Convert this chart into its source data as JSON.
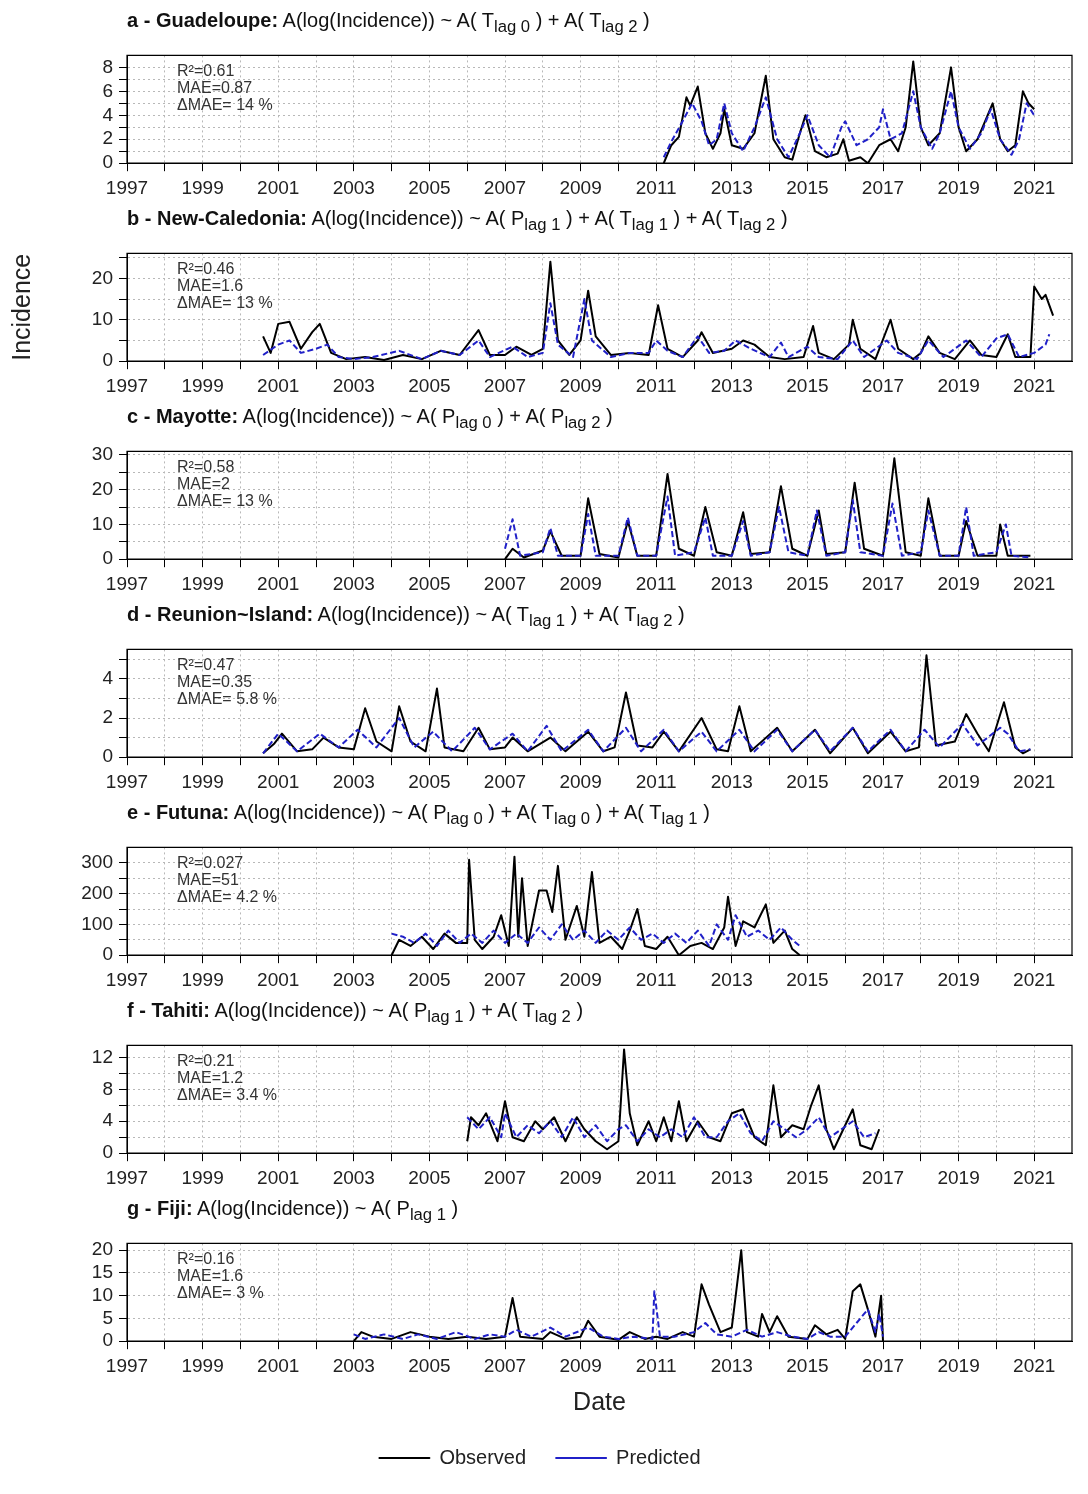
{
  "chart_data": [
    {
      "type": "line",
      "title": "a - Guadeloupe: A(log(Incidence)) ~ A( T$_{lag 0}$ ) + A( T$_{lag 2}$ )",
      "annotations": [
        "R²=0.61",
        "MAE=0.87",
        "ΔMAE= 14 %"
      ],
      "xlim": [
        1997,
        2022
      ],
      "xticks": [
        1997,
        {
          "value": 1998,
          "label": null
        },
        1999,
        {
          "value": 2000,
          "label": null
        },
        2001,
        {
          "value": 2002,
          "label": null
        },
        2003,
        {
          "value": 2004,
          "label": null
        },
        2005,
        {
          "value": 2006,
          "label": null
        },
        2007,
        {
          "value": 2008,
          "label": null
        },
        2009,
        {
          "value": 2010,
          "label": null
        },
        2011,
        {
          "value": 2012,
          "label": null
        },
        2013,
        {
          "value": 2014,
          "label": null
        },
        2015,
        {
          "value": 2016,
          "label": null
        },
        2017,
        {
          "value": 2018,
          "label": null
        },
        2019,
        {
          "value": 2020,
          "label": null
        },
        2021
      ],
      "ylim": [
        0,
        9
      ],
      "yticks": [
        0,
        {
          "value": 1,
          "label": null
        },
        2,
        {
          "value": 3,
          "label": null
        },
        4,
        {
          "value": 5,
          "label": null
        },
        6,
        {
          "value": 7,
          "label": null
        },
        8
      ],
      "grid": true,
      "marker": "none",
      "series": [
        {
          "color": "#000000",
          "line_style": "solid",
          "x": [
            2011.2,
            2011.4,
            2011.6,
            2011.8,
            2011.9,
            2012.1,
            2012.3,
            2012.5,
            2012.7,
            2012.8,
            2013.0,
            2013.3,
            2013.6,
            2013.9,
            2014.1,
            2014.4,
            2014.6,
            2014.8,
            2014.95,
            2015.2,
            2015.5,
            2015.8,
            2015.95,
            2016.1,
            2016.4,
            2016.6,
            2016.9,
            2017.2,
            2017.4,
            2017.6,
            2017.8,
            2018.0,
            2018.2,
            2018.5,
            2018.8,
            2019.0,
            2019.2,
            2019.5,
            2019.7,
            2019.9,
            2020.1,
            2020.3,
            2020.5,
            2020.7,
            2020.85,
            2021.0
          ],
          "values": [
            0,
            1.5,
            2.2,
            5.5,
            4.8,
            6.4,
            2.5,
            1.2,
            2.5,
            4.5,
            1.5,
            1.2,
            2.5,
            7.3,
            2,
            0.5,
            0.3,
            2.5,
            4,
            1,
            0.5,
            0.8,
            2,
            0.2,
            0.5,
            0,
            1.5,
            2,
            1,
            3,
            8.5,
            3,
            1.5,
            2.5,
            8,
            3,
            1,
            2,
            3.5,
            5,
            2,
            1,
            1.5,
            6,
            5,
            4.5
          ]
        },
        {
          "color": "#2020c8",
          "line_style": "dashed",
          "x": [
            2011.2,
            2011.4,
            2011.7,
            2011.95,
            2012.2,
            2012.4,
            2012.6,
            2012.8,
            2013.0,
            2013.3,
            2013.6,
            2013.9,
            2014.2,
            2014.5,
            2014.8,
            2015.0,
            2015.3,
            2015.6,
            2015.9,
            2016.0,
            2016.3,
            2016.6,
            2016.9,
            2017.0,
            2017.2,
            2017.5,
            2017.8,
            2018.0,
            2018.3,
            2018.5,
            2018.8,
            2019.0,
            2019.3,
            2019.6,
            2019.85,
            2020.1,
            2020.4,
            2020.6,
            2020.8,
            2021.0
          ],
          "values": [
            0.5,
            1.8,
            3.5,
            5,
            3.5,
            1.5,
            2,
            5,
            2.5,
            1,
            3,
            5.5,
            2,
            0.5,
            2.5,
            4,
            1.5,
            0.5,
            3,
            3.5,
            1.5,
            2,
            3,
            4.5,
            2,
            2.5,
            6,
            3,
            1.2,
            2.5,
            6,
            3,
            1.2,
            2.5,
            4.5,
            2,
            0.7,
            2,
            5,
            4
          ]
        }
      ]
    },
    {
      "type": "line",
      "title": "b - New-Caledonia: A(log(Incidence)) ~ A( P$_{lag 1}$ )  + A( T$_{lag 1}$ ) + A( T$_{lag 2}$ )",
      "ylabel": "Incidence",
      "annotations": [
        "R²=0.46",
        "MAE=1.6",
        "ΔMAE= 13 %"
      ],
      "xlim": [
        1997,
        2022
      ],
      "xticks": [
        1997,
        {
          "value": 1998,
          "label": null
        },
        1999,
        {
          "value": 2000,
          "label": null
        },
        2001,
        {
          "value": 2002,
          "label": null
        },
        2003,
        {
          "value": 2004,
          "label": null
        },
        2005,
        {
          "value": 2006,
          "label": null
        },
        2007,
        {
          "value": 2008,
          "label": null
        },
        2009,
        {
          "value": 2010,
          "label": null
        },
        2011,
        {
          "value": 2012,
          "label": null
        },
        2013,
        {
          "value": 2014,
          "label": null
        },
        2015,
        {
          "value": 2016,
          "label": null
        },
        2017,
        {
          "value": 2018,
          "label": null
        },
        2019,
        {
          "value": 2020,
          "label": null
        },
        2021
      ],
      "ylim": [
        0,
        26
      ],
      "yticks": [
        0,
        {
          "value": 5,
          "label": null
        },
        10,
        {
          "value": 15,
          "label": null
        },
        20,
        {
          "value": 25,
          "label": null
        }
      ],
      "grid": true,
      "marker": "none",
      "series": [
        {
          "color": "#000000",
          "line_style": "solid",
          "x": [
            2000.6,
            2000.8,
            2001.0,
            2001.3,
            2001.6,
            2001.9,
            2002.1,
            2002.4,
            2002.8,
            2003.3,
            2003.8,
            2004.3,
            2004.8,
            2005.3,
            2005.8,
            2006.3,
            2006.6,
            2007.0,
            2007.3,
            2007.7,
            2008.0,
            2008.2,
            2008.4,
            2008.7,
            2009.0,
            2009.2,
            2009.4,
            2009.8,
            2010.3,
            2010.8,
            2011.05,
            2011.3,
            2011.7,
            2012.1,
            2012.2,
            2012.5,
            2013.0,
            2013.3,
            2013.6,
            2014.0,
            2014.4,
            2014.9,
            2015.15,
            2015.3,
            2015.7,
            2016.1,
            2016.2,
            2016.4,
            2016.8,
            2017.2,
            2017.4,
            2017.8,
            2018.0,
            2018.2,
            2018.5,
            2018.9,
            2019.3,
            2019.6,
            2020.0,
            2020.3,
            2020.5,
            2020.9,
            2021.0,
            2021.2,
            2021.3,
            2021.5
          ],
          "values": [
            6,
            2,
            9,
            9.5,
            3,
            7,
            9,
            2,
            0.5,
            1,
            0.3,
            1.5,
            0.5,
            2.5,
            1.5,
            7.5,
            1.5,
            1.5,
            3.5,
            1.5,
            3,
            24,
            5,
            1.5,
            5,
            17,
            6,
            1.5,
            2,
            1.5,
            13.5,
            3,
            1,
            5,
            7,
            2,
            3,
            5,
            4,
            1,
            0.5,
            1,
            8.5,
            2,
            0.5,
            4,
            10,
            3,
            0.5,
            10,
            3,
            0.5,
            2,
            6,
            2,
            0.5,
            5,
            1.5,
            1,
            6.5,
            1,
            1,
            18,
            15,
            16,
            11
          ]
        },
        {
          "color": "#2020c8",
          "line_style": "dashed",
          "x": [
            2000.6,
            2001.0,
            2001.3,
            2001.6,
            2002.0,
            2002.3,
            2002.6,
            2003.0,
            2003.5,
            2004.2,
            2004.8,
            2005.3,
            2005.8,
            2006.3,
            2006.6,
            2007.2,
            2007.6,
            2008.0,
            2008.2,
            2008.4,
            2008.8,
            2009.1,
            2009.3,
            2009.8,
            2010.3,
            2010.8,
            2011.0,
            2011.3,
            2011.7,
            2012.1,
            2012.4,
            2012.8,
            2013.1,
            2013.5,
            2014.0,
            2014.3,
            2014.5,
            2015.0,
            2015.3,
            2015.8,
            2016.2,
            2016.5,
            2017.1,
            2017.4,
            2017.9,
            2018.2,
            2018.6,
            2019.2,
            2019.6,
            2020.0,
            2020.3,
            2020.6,
            2021.0,
            2021.3,
            2021.4
          ],
          "values": [
            1.5,
            4,
            5,
            2,
            3,
            4,
            1,
            0.5,
            1,
            2.5,
            0.5,
            2.5,
            1.5,
            5,
            1,
            3.5,
            1,
            2,
            14,
            4,
            1,
            15,
            5,
            1,
            2,
            2,
            5,
            2.5,
            1,
            6,
            2,
            2.5,
            5,
            3,
            1,
            4.5,
            1,
            3.5,
            1,
            0.5,
            5,
            1,
            5,
            2,
            0.5,
            5,
            1,
            5,
            1,
            5.5,
            6.5,
            1,
            2,
            4,
            6.5
          ]
        }
      ]
    },
    {
      "type": "line",
      "title": "c - Mayotte: A(log(Incidence)) ~  A( P$_{lag 0}$ ) +  A( P$_{lag 2}$ )",
      "annotations": [
        "R²=0.58",
        "MAE=2",
        "ΔMAE= 13 %"
      ],
      "xlim": [
        1997,
        2022
      ],
      "xticks": [
        1997,
        {
          "value": 1998,
          "label": null
        },
        1999,
        {
          "value": 2000,
          "label": null
        },
        2001,
        {
          "value": 2002,
          "label": null
        },
        2003,
        {
          "value": 2004,
          "label": null
        },
        2005,
        {
          "value": 2006,
          "label": null
        },
        2007,
        {
          "value": 2008,
          "label": null
        },
        2009,
        {
          "value": 2010,
          "label": null
        },
        2011,
        {
          "value": 2012,
          "label": null
        },
        2013,
        {
          "value": 2014,
          "label": null
        },
        2015,
        {
          "value": 2016,
          "label": null
        },
        2017,
        {
          "value": 2018,
          "label": null
        },
        2019,
        {
          "value": 2020,
          "label": null
        },
        2021
      ],
      "ylim": [
        0,
        31
      ],
      "yticks": [
        0,
        {
          "value": 5,
          "label": null
        },
        10,
        {
          "value": 15,
          "label": null
        },
        20,
        {
          "value": 25,
          "label": null
        },
        30
      ],
      "grid": true,
      "marker": "none",
      "series": [
        {
          "color": "#000000",
          "line_style": "solid",
          "x": [
            2007.0,
            2007.2,
            2007.5,
            2008.0,
            2008.2,
            2008.5,
            2009.0,
            2009.2,
            2009.5,
            2010.0,
            2010.25,
            2010.5,
            2011.0,
            2011.3,
            2011.6,
            2012.0,
            2012.3,
            2012.6,
            2013.0,
            2013.3,
            2013.5,
            2014.0,
            2014.3,
            2014.6,
            2015.0,
            2015.3,
            2015.5,
            2016.0,
            2016.25,
            2016.5,
            2017.0,
            2017.3,
            2017.6,
            2018.0,
            2018.2,
            2018.5,
            2019.0,
            2019.2,
            2019.5,
            2020.0,
            2020.1,
            2020.3,
            2020.9
          ],
          "values": [
            0,
            3,
            0.5,
            2.5,
            8,
            1,
            1,
            17.5,
            1.5,
            0.5,
            11,
            1,
            1,
            24.5,
            3,
            1,
            15,
            2,
            1,
            13.5,
            1.5,
            2,
            21,
            3,
            1,
            14,
            1.5,
            2,
            22,
            3,
            1,
            29,
            2,
            1,
            17.5,
            1,
            1,
            11,
            1,
            1,
            10,
            1,
            1
          ]
        },
        {
          "color": "#2020c8",
          "line_style": "dashed",
          "x": [
            2007.0,
            2007.2,
            2007.4,
            2008.0,
            2008.2,
            2008.4,
            2009.0,
            2009.2,
            2009.4,
            2010.0,
            2010.25,
            2010.5,
            2011.0,
            2011.3,
            2011.5,
            2012.0,
            2012.3,
            2012.5,
            2013.0,
            2013.3,
            2013.5,
            2014.0,
            2014.25,
            2014.5,
            2015.0,
            2015.25,
            2015.5,
            2016.0,
            2016.2,
            2016.4,
            2017.0,
            2017.25,
            2017.5,
            2018.0,
            2018.2,
            2018.5,
            2019.0,
            2019.2,
            2019.4,
            2020.0,
            2020.25,
            2020.4,
            2020.9
          ],
          "values": [
            3,
            11.5,
            1,
            2,
            9,
            1,
            1,
            13,
            1,
            1,
            12,
            1,
            1,
            18,
            1,
            2,
            12,
            1,
            1,
            11,
            1,
            2,
            15,
            2,
            1,
            14,
            1,
            2,
            17,
            2,
            1,
            16,
            1,
            2,
            14,
            1,
            1,
            15,
            1,
            2,
            10,
            1,
            0.5
          ]
        }
      ]
    },
    {
      "type": "line",
      "title": "d - Reunion~Island: A(log(Incidence)) ~ A( T$_{lag 1}$ ) + A( T$_{lag 2}$ )",
      "annotations": [
        "R²=0.47",
        "MAE=0.35",
        "ΔMAE= 5.8 %"
      ],
      "xlim": [
        1997,
        2022
      ],
      "xticks": [
        1997,
        {
          "value": 1998,
          "label": null
        },
        1999,
        {
          "value": 2000,
          "label": null
        },
        2001,
        {
          "value": 2002,
          "label": null
        },
        2003,
        {
          "value": 2004,
          "label": null
        },
        2005,
        {
          "value": 2006,
          "label": null
        },
        2007,
        {
          "value": 2008,
          "label": null
        },
        2009,
        {
          "value": 2010,
          "label": null
        },
        2011,
        {
          "value": 2012,
          "label": null
        },
        2013,
        {
          "value": 2014,
          "label": null
        },
        2015,
        {
          "value": 2016,
          "label": null
        },
        2017,
        {
          "value": 2018,
          "label": null
        },
        2019,
        {
          "value": 2020,
          "label": null
        },
        2021
      ],
      "ylim": [
        0,
        5.5
      ],
      "yticks": [
        0,
        {
          "value": 1,
          "label": null
        },
        2,
        {
          "value": 3,
          "label": null
        },
        4,
        {
          "value": 5,
          "label": null
        }
      ],
      "grid": true,
      "marker": "none",
      "series": [
        {
          "color": "#000000",
          "line_style": "solid",
          "x": [
            2000.6,
            2000.9,
            2001.1,
            2001.5,
            2001.9,
            2002.2,
            2002.6,
            2003.0,
            2003.3,
            2003.6,
            2004.0,
            2004.2,
            2004.5,
            2004.9,
            2005.2,
            2005.4,
            2005.9,
            2006.3,
            2006.6,
            2007.0,
            2007.2,
            2007.6,
            2008.2,
            2008.6,
            2009.2,
            2009.6,
            2009.9,
            2010.2,
            2010.5,
            2010.9,
            2011.2,
            2011.6,
            2012.2,
            2012.6,
            2012.9,
            2013.2,
            2013.5,
            2014.2,
            2014.6,
            2015.2,
            2015.6,
            2016.2,
            2016.6,
            2017.2,
            2017.6,
            2017.95,
            2018.15,
            2018.4,
            2018.9,
            2019.2,
            2019.5,
            2019.8,
            2020.2,
            2020.5,
            2020.7,
            2020.9
          ],
          "values": [
            0.2,
            0.7,
            1.2,
            0.3,
            0.4,
            1,
            0.5,
            0.4,
            2.5,
            0.8,
            0.3,
            2.6,
            0.8,
            0.3,
            3.5,
            0.5,
            0.3,
            1.5,
            0.4,
            0.5,
            1,
            0.3,
            1,
            0.3,
            1.3,
            0.3,
            0.5,
            3.3,
            0.6,
            0.5,
            1.3,
            0.3,
            2,
            0.4,
            0.3,
            2.6,
            0.3,
            1.5,
            0.3,
            1.4,
            0.2,
            1.5,
            0.2,
            1.3,
            0.3,
            0.5,
            5.2,
            0.6,
            0.8,
            2.2,
            1.2,
            0.3,
            2.8,
            0.5,
            0.2,
            0.4
          ]
        },
        {
          "color": "#2020c8",
          "line_style": "dashed",
          "x": [
            2000.6,
            2001.0,
            2001.5,
            2002.1,
            2002.6,
            2003.1,
            2003.6,
            2004.2,
            2004.6,
            2005.1,
            2005.6,
            2006.2,
            2006.6,
            2007.2,
            2007.6,
            2008.1,
            2008.5,
            2009.2,
            2009.6,
            2010.2,
            2010.6,
            2011.2,
            2011.6,
            2012.2,
            2012.6,
            2013.2,
            2013.6,
            2014.2,
            2014.6,
            2015.2,
            2015.6,
            2016.2,
            2016.6,
            2017.2,
            2017.6,
            2018.1,
            2018.5,
            2019.1,
            2019.5,
            2020.1,
            2020.3,
            2020.6,
            2020.9
          ],
          "values": [
            0.2,
            1.2,
            0.3,
            1.2,
            0.5,
            1.4,
            0.5,
            2,
            0.5,
            1.3,
            0.3,
            1.5,
            0.4,
            1.2,
            0.3,
            1.6,
            0.3,
            1.4,
            0.3,
            1.5,
            0.3,
            1.4,
            0.3,
            1.3,
            0.3,
            1.4,
            0.3,
            1.4,
            0.3,
            1.4,
            0.3,
            1.5,
            0.3,
            1.4,
            0.3,
            1.4,
            0.5,
            1.7,
            0.6,
            1.5,
            1.2,
            0.3,
            0.4
          ]
        }
      ]
    },
    {
      "type": "line",
      "title": "e - Futuna: A(log(Incidence)) ~  A( P$_{lag 0}$ ) + A( T$_{lag 0}$ ) + A( T$_{lag 1}$ )",
      "annotations": [
        "R²=0.027",
        "MAE=51",
        "ΔMAE= 4.2 %"
      ],
      "xlim": [
        1997,
        2022
      ],
      "xticks": [
        1997,
        {
          "value": 1998,
          "label": null
        },
        1999,
        {
          "value": 2000,
          "label": null
        },
        2001,
        {
          "value": 2002,
          "label": null
        },
        2003,
        {
          "value": 2004,
          "label": null
        },
        2005,
        {
          "value": 2006,
          "label": null
        },
        2007,
        {
          "value": 2008,
          "label": null
        },
        2009,
        {
          "value": 2010,
          "label": null
        },
        2011,
        {
          "value": 2012,
          "label": null
        },
        2013,
        {
          "value": 2014,
          "label": null
        },
        2015,
        {
          "value": 2016,
          "label": null
        },
        2017,
        {
          "value": 2018,
          "label": null
        },
        2019,
        {
          "value": 2020,
          "label": null
        },
        2021
      ],
      "ylim": [
        0,
        350
      ],
      "yticks": [
        0,
        {
          "value": 50,
          "label": null
        },
        100,
        {
          "value": 150,
          "label": null
        },
        200,
        {
          "value": 250,
          "label": null
        },
        300
      ],
      "grid": true,
      "marker": "none",
      "series": [
        {
          "color": "#000000",
          "line_style": "solid",
          "x": [
            2004.0,
            2004.2,
            2004.5,
            2004.8,
            2005.1,
            2005.4,
            2005.7,
            2006.0,
            2006.05,
            2006.2,
            2006.4,
            2006.7,
            2006.9,
            2007.1,
            2007.25,
            2007.35,
            2007.45,
            2007.6,
            2007.9,
            2008.1,
            2008.25,
            2008.4,
            2008.6,
            2008.9,
            2009.1,
            2009.3,
            2009.5,
            2009.8,
            2010.1,
            2010.3,
            2010.5,
            2010.7,
            2011.0,
            2011.3,
            2011.6,
            2011.9,
            2012.2,
            2012.5,
            2012.8,
            2012.9,
            2013.1,
            2013.3,
            2013.6,
            2013.9,
            2014.1,
            2014.4,
            2014.6,
            2014.8
          ],
          "values": [
            0,
            50,
            30,
            60,
            20,
            70,
            40,
            40,
            310,
            50,
            20,
            60,
            130,
            30,
            320,
            60,
            250,
            30,
            210,
            210,
            140,
            290,
            50,
            160,
            60,
            270,
            40,
            60,
            20,
            80,
            150,
            30,
            20,
            60,
            0,
            30,
            40,
            20,
            90,
            190,
            30,
            110,
            90,
            165,
            40,
            80,
            20,
            0
          ]
        },
        {
          "color": "#2020c8",
          "line_style": "dashed",
          "x": [
            2004.0,
            2004.3,
            2004.6,
            2004.9,
            2005.2,
            2005.5,
            2005.8,
            2006.1,
            2006.4,
            2006.7,
            2007.0,
            2007.3,
            2007.6,
            2007.9,
            2008.2,
            2008.5,
            2008.8,
            2009.1,
            2009.4,
            2009.7,
            2010.0,
            2010.3,
            2010.6,
            2010.9,
            2011.2,
            2011.5,
            2011.8,
            2012.1,
            2012.4,
            2012.6,
            2012.9,
            2013.1,
            2013.4,
            2013.7,
            2014.0,
            2014.3,
            2014.6,
            2014.8
          ],
          "values": [
            70,
            60,
            40,
            70,
            30,
            80,
            40,
            70,
            40,
            80,
            40,
            70,
            40,
            90,
            50,
            100,
            50,
            80,
            40,
            80,
            50,
            90,
            50,
            70,
            40,
            70,
            40,
            80,
            30,
            100,
            50,
            130,
            60,
            80,
            50,
            90,
            50,
            30
          ]
        }
      ]
    },
    {
      "type": "line",
      "title": "f - Tahiti: A(log(Incidence)) ~ A( P$_{lag 1}$ ) + A( T$_{lag 2}$ )",
      "annotations": [
        "R²=0.21",
        "MAE=1.2",
        "ΔMAE= 3.4 %"
      ],
      "xlim": [
        1997,
        2022
      ],
      "xticks": [
        1997,
        {
          "value": 1998,
          "label": null
        },
        1999,
        {
          "value": 2000,
          "label": null
        },
        2001,
        {
          "value": 2002,
          "label": null
        },
        2003,
        {
          "value": 2004,
          "label": null
        },
        2005,
        {
          "value": 2006,
          "label": null
        },
        2007,
        {
          "value": 2008,
          "label": null
        },
        2009,
        {
          "value": 2010,
          "label": null
        },
        2011,
        {
          "value": 2012,
          "label": null
        },
        2013,
        {
          "value": 2014,
          "label": null
        },
        2015,
        {
          "value": 2016,
          "label": null
        },
        2017,
        {
          "value": 2018,
          "label": null
        },
        2019,
        {
          "value": 2020,
          "label": null
        },
        2021
      ],
      "ylim": [
        0,
        13.5
      ],
      "yticks": [
        0,
        {
          "value": 2,
          "label": null
        },
        4,
        {
          "value": 6,
          "label": null
        },
        8,
        {
          "value": 10,
          "label": null
        },
        12
      ],
      "grid": true,
      "marker": "none",
      "series": [
        {
          "color": "#000000",
          "line_style": "solid",
          "x": [
            2006.0,
            2006.1,
            2006.3,
            2006.5,
            2006.8,
            2007.0,
            2007.2,
            2007.5,
            2007.8,
            2008.0,
            2008.3,
            2008.6,
            2008.9,
            2009.1,
            2009.4,
            2009.7,
            2010.0,
            2010.15,
            2010.3,
            2010.5,
            2010.8,
            2011.0,
            2011.2,
            2011.4,
            2011.6,
            2011.8,
            2012.1,
            2012.4,
            2012.7,
            2013.0,
            2013.3,
            2013.6,
            2013.9,
            2014.1,
            2014.3,
            2014.6,
            2014.9,
            2015.1,
            2015.3,
            2015.5,
            2015.7,
            2016.0,
            2016.2,
            2016.4,
            2016.7,
            2016.9
          ],
          "values": [
            1.5,
            4.5,
            3.5,
            5,
            1.5,
            6.5,
            2,
            1.5,
            4,
            3,
            4.5,
            1.5,
            4.5,
            3,
            1.5,
            0.5,
            1.5,
            13,
            5,
            1,
            4,
            1.5,
            4.5,
            1.5,
            6.5,
            1.5,
            4,
            2,
            1.5,
            5,
            5.5,
            2,
            1,
            8.5,
            2,
            3.5,
            3,
            6,
            8.5,
            3,
            0.5,
            3.5,
            5.5,
            1,
            0.5,
            3
          ]
        },
        {
          "color": "#2020c8",
          "line_style": "dashed",
          "x": [
            2006.0,
            2006.3,
            2006.6,
            2006.9,
            2007.0,
            2007.3,
            2007.6,
            2007.9,
            2008.2,
            2008.5,
            2008.8,
            2009.1,
            2009.4,
            2009.7,
            2010.0,
            2010.2,
            2010.5,
            2010.8,
            2011.1,
            2011.4,
            2011.7,
            2012.0,
            2012.3,
            2012.6,
            2012.9,
            2013.2,
            2013.5,
            2013.8,
            2014.1,
            2014.4,
            2014.7,
            2015.0,
            2015.3,
            2015.6,
            2015.9,
            2016.2,
            2016.5,
            2016.8
          ],
          "values": [
            4.5,
            3,
            4.5,
            2,
            5,
            2,
            3.5,
            2.5,
            4,
            2,
            4.5,
            2,
            3.5,
            1.5,
            3,
            3.5,
            1.5,
            3,
            2,
            3,
            2,
            4.5,
            2,
            2,
            4,
            5,
            2.5,
            1.5,
            4,
            3,
            2,
            3,
            4.5,
            2,
            3,
            4,
            2,
            2.5
          ]
        }
      ]
    },
    {
      "type": "line",
      "title": "g - Fiji: A(log(Incidence)) ~   A( P$_{lag 1}$ )",
      "xlabel": "Date",
      "annotations": [
        "R²=0.16",
        "MAE=1.6",
        "ΔMAE= 3 %"
      ],
      "xlim": [
        1997,
        2022
      ],
      "xticks": [
        1997,
        {
          "value": 1998,
          "label": null
        },
        1999,
        {
          "value": 2000,
          "label": null
        },
        2001,
        {
          "value": 2002,
          "label": null
        },
        2003,
        {
          "value": 2004,
          "label": null
        },
        2005,
        {
          "value": 2006,
          "label": null
        },
        2007,
        {
          "value": 2008,
          "label": null
        },
        2009,
        {
          "value": 2010,
          "label": null
        },
        2011,
        {
          "value": 2012,
          "label": null
        },
        2013,
        {
          "value": 2014,
          "label": null
        },
        2015,
        {
          "value": 2016,
          "label": null
        },
        2017,
        {
          "value": 2018,
          "label": null
        },
        2019,
        {
          "value": 2020,
          "label": null
        },
        2021
      ],
      "ylim": [
        0,
        21.5
      ],
      "yticks": [
        0,
        5,
        10,
        15,
        20
      ],
      "grid": true,
      "marker": "none",
      "legend": "bottom",
      "series": [
        {
          "name": "Observed",
          "color": "#000000",
          "line_style": "solid",
          "x": [
            2003.0,
            2003.2,
            2003.5,
            2004.0,
            2004.5,
            2005.0,
            2005.5,
            2006.0,
            2006.5,
            2007.0,
            2007.2,
            2007.4,
            2008.0,
            2008.2,
            2008.6,
            2009.0,
            2009.2,
            2009.5,
            2010.0,
            2010.3,
            2010.7,
            2011.0,
            2011.3,
            2011.7,
            2012.0,
            2012.2,
            2012.4,
            2012.7,
            2013.0,
            2013.25,
            2013.4,
            2013.7,
            2013.8,
            2014.0,
            2014.2,
            2014.5,
            2015.0,
            2015.2,
            2015.5,
            2015.8,
            2016.0,
            2016.2,
            2016.4,
            2016.6,
            2016.8,
            2016.95,
            2017.0
          ],
          "values": [
            0,
            2,
            1,
            0.5,
            2,
            1,
            0.5,
            1,
            0.5,
            1,
            9.5,
            1,
            0.5,
            2,
            0.5,
            1,
            4.5,
            1,
            0.3,
            2,
            0.5,
            1,
            0.5,
            2,
            1,
            12.5,
            8,
            2,
            3,
            20,
            2,
            1,
            6,
            2,
            5.5,
            1,
            0.5,
            3.5,
            1.5,
            2.5,
            0.5,
            11,
            12.5,
            7,
            1,
            10,
            0
          ]
        },
        {
          "name": "Predicted",
          "color": "#2020c8",
          "line_style": "dashed",
          "x": [
            2003.0,
            2003.3,
            2003.8,
            2004.3,
            2004.7,
            2005.2,
            2005.7,
            2006.2,
            2006.6,
            2007.0,
            2007.3,
            2007.7,
            2008.2,
            2008.6,
            2009.2,
            2009.6,
            2010.0,
            2010.4,
            2010.9,
            2010.95,
            2011.1,
            2011.5,
            2012.0,
            2012.3,
            2012.6,
            2013.0,
            2013.4,
            2013.8,
            2014.2,
            2014.6,
            2015.0,
            2015.3,
            2015.6,
            2016.0,
            2016.3,
            2016.6,
            2016.8,
            2016.9,
            2017.0
          ],
          "values": [
            1.5,
            0.5,
            1.5,
            0.5,
            1.5,
            0.5,
            2,
            0.5,
            1.5,
            1,
            2.5,
            1,
            3,
            1,
            3,
            1,
            0.5,
            1,
            0.5,
            11,
            1,
            1,
            2,
            4,
            1.5,
            1,
            2.5,
            1,
            2,
            1,
            0.5,
            2,
            1,
            1,
            4,
            7,
            2,
            6,
            1
          ]
        }
      ]
    }
  ]
}
